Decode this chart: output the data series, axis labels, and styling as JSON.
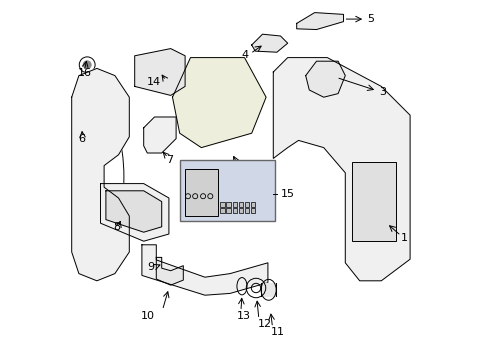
{
  "title": "",
  "background_color": "#ffffff",
  "fig_width": 4.89,
  "fig_height": 3.6,
  "dpi": 100,
  "line_color": "#000000",
  "label_fontsize": 8,
  "box_color": "#d0d8e8",
  "fill_light": "#f0f0f0",
  "fill_mid": "#e8e8e8",
  "fill_dark": "#e0e0e0",
  "fill_cream": "#eeeedd"
}
